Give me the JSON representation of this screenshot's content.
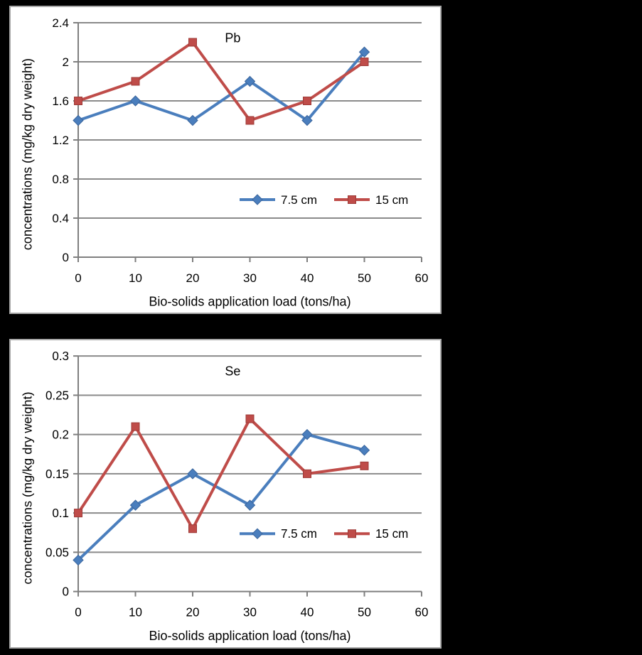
{
  "figure": {
    "background": "#000000",
    "panel_background": "#ffffff",
    "panel_border_color": "#a9a9a9",
    "grid_color": "#8a8a8a",
    "axis_color": "#7f7f7f",
    "text_color": "#000000"
  },
  "chart_data": [
    {
      "id": "pb",
      "type": "line",
      "title": "Pb",
      "xlabel": "Bio-solids application load (tons/ha)",
      "ylabel": "concentrations (mg/kg dry weight)",
      "xlim": [
        0,
        60
      ],
      "ylim": [
        0,
        2.4
      ],
      "xticks": [
        0,
        10,
        20,
        30,
        40,
        50,
        60
      ],
      "xtick_labels": [
        "0",
        "10",
        "20",
        "30",
        "40",
        "50",
        "60"
      ],
      "yticks": [
        0,
        0.4,
        0.8,
        1.2,
        1.6,
        2,
        2.4
      ],
      "ytick_labels": [
        "0",
        "0.4",
        "0.8",
        "1.2",
        "1.6",
        "2",
        "2.4"
      ],
      "grid": true,
      "legend": {
        "position": "inside-lower-right",
        "orientation": "horizontal"
      },
      "x": [
        0,
        10,
        20,
        30,
        40,
        50
      ],
      "series": [
        {
          "name": "7.5 cm",
          "color": "#4A7EBD",
          "marker_edge": "#3A659C",
          "marker": "diamond",
          "values": [
            1.4,
            1.6,
            1.4,
            1.8,
            1.4,
            2.1
          ]
        },
        {
          "name": "15 cm",
          "color": "#BF4C49",
          "marker_edge": "#9E3B38",
          "marker": "square",
          "values": [
            1.6,
            1.8,
            2.2,
            1.4,
            1.6,
            2.0
          ]
        }
      ]
    },
    {
      "id": "se",
      "type": "line",
      "title": "Se",
      "xlabel": "Bio-solids application load (tons/ha)",
      "ylabel": "concentrations (mg/kg dry weight)",
      "xlim": [
        0,
        60
      ],
      "ylim": [
        0,
        0.3
      ],
      "xticks": [
        0,
        10,
        20,
        30,
        40,
        50,
        60
      ],
      "xtick_labels": [
        "0",
        "10",
        "20",
        "30",
        "40",
        "50",
        "60"
      ],
      "yticks": [
        0,
        0.05,
        0.1,
        0.15,
        0.2,
        0.25,
        0.3
      ],
      "ytick_labels": [
        "0",
        "0.05",
        "0.1",
        "0.15",
        "0.2",
        "0.25",
        "0.3"
      ],
      "grid": true,
      "legend": {
        "position": "inside-lower-right",
        "orientation": "horizontal"
      },
      "x": [
        0,
        10,
        20,
        30,
        40,
        50
      ],
      "series": [
        {
          "name": "7.5 cm",
          "color": "#4A7EBD",
          "marker_edge": "#3A659C",
          "marker": "diamond",
          "values": [
            0.04,
            0.11,
            0.15,
            0.11,
            0.2,
            0.18
          ]
        },
        {
          "name": "15 cm",
          "color": "#BF4C49",
          "marker_edge": "#9E3B38",
          "marker": "square",
          "values": [
            0.1,
            0.21,
            0.08,
            0.22,
            0.15,
            0.16
          ]
        }
      ]
    }
  ]
}
